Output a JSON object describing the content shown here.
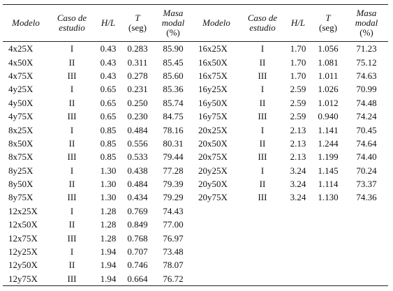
{
  "header": [
    {
      "main": "Modelo"
    },
    {
      "main": "Caso de estudio"
    },
    {
      "main": "H/L"
    },
    {
      "main": "T",
      "unit": "(seg)"
    },
    {
      "main": "Masa modal",
      "unit": "(%)"
    }
  ],
  "left": {
    "rows": [
      [
        "4x25X",
        "I",
        "0.43",
        "0.283",
        "85.90"
      ],
      [
        "4x50X",
        "II",
        "0.43",
        "0.311",
        "85.45"
      ],
      [
        "4x75X",
        "III",
        "0.43",
        "0.278",
        "85.60"
      ],
      [
        "4y25X",
        "I",
        "0.65",
        "0.231",
        "85.36"
      ],
      [
        "4y50X",
        "II",
        "0.65",
        "0.250",
        "85.74"
      ],
      [
        "4y75X",
        "III",
        "0.65",
        "0.230",
        "84.75"
      ],
      [
        "8x25X",
        "I",
        "0.85",
        "0.484",
        "78.16"
      ],
      [
        "8x50X",
        "II",
        "0.85",
        "0.556",
        "80.31"
      ],
      [
        "8x75X",
        "III",
        "0.85",
        "0.533",
        "79.44"
      ],
      [
        "8y25X",
        "I",
        "1.30",
        "0.438",
        "77.28"
      ],
      [
        "8y50X",
        "II",
        "1.30",
        "0.484",
        "79.39"
      ],
      [
        "8y75X",
        "III",
        "1.30",
        "0.434",
        "79.29"
      ],
      [
        "12x25X",
        "I",
        "1.28",
        "0.769",
        "74.43"
      ],
      [
        "12x50X",
        "II",
        "1.28",
        "0.849",
        "77.00"
      ],
      [
        "12x75X",
        "III",
        "1.28",
        "0.768",
        "76.97"
      ],
      [
        "12y25X",
        "I",
        "1.94",
        "0.707",
        "73.48"
      ],
      [
        "12y50X",
        "II",
        "1.94",
        "0.746",
        "78.07"
      ],
      [
        "12y75X",
        "III",
        "1.94",
        "0.664",
        "76.72"
      ]
    ]
  },
  "right": {
    "rows": [
      [
        "16x25X",
        "I",
        "1.70",
        "1.056",
        "71.23"
      ],
      [
        "16x50X",
        "II",
        "1.70",
        "1.081",
        "75.12"
      ],
      [
        "16x75X",
        "III",
        "1.70",
        "1.011",
        "74.63"
      ],
      [
        "16y25X",
        "I",
        "2.59",
        "1.026",
        "70.99"
      ],
      [
        "16y50X",
        "II",
        "2.59",
        "1.012",
        "74.48"
      ],
      [
        "16y75X",
        "III",
        "2.59",
        "0.940",
        "74.24"
      ],
      [
        "20x25X",
        "I",
        "2.13",
        "1.141",
        "70.45"
      ],
      [
        "20x50X",
        "II",
        "2.13",
        "1.244",
        "74.64"
      ],
      [
        "20x75X",
        "III",
        "2.13",
        "1.199",
        "74.40"
      ],
      [
        "20y25X",
        "I",
        "3.24",
        "1.145",
        "70.24"
      ],
      [
        "20y50X",
        "II",
        "3.24",
        "1.114",
        "73.37"
      ],
      [
        "20y75X",
        "III",
        "3.24",
        "1.130",
        "74.36"
      ]
    ]
  }
}
